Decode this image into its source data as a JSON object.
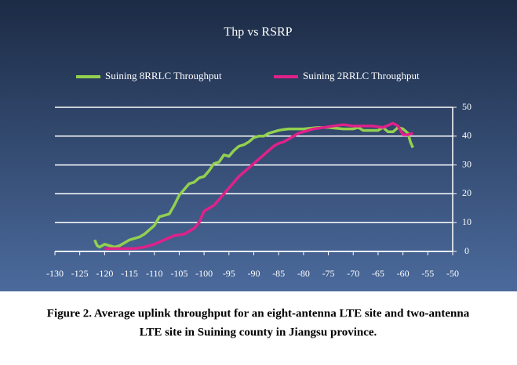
{
  "chart_data": {
    "type": "line",
    "title": "Thp vs RSRP",
    "xlim": [
      -130,
      -50
    ],
    "xticks": [
      -130,
      -125,
      -120,
      -115,
      -110,
      -105,
      -100,
      -95,
      -90,
      -85,
      -80,
      -75,
      -70,
      -65,
      -60,
      -55,
      -50
    ],
    "ylim": [
      0,
      50
    ],
    "yticks": [
      0,
      10,
      20,
      30,
      40,
      50
    ],
    "grid": true,
    "legend": "top",
    "series": [
      {
        "name": "Suining 8RRLC Throughput",
        "color": "#92d050",
        "x": [
          -122,
          -121.5,
          -121,
          -120,
          -119,
          -118,
          -117,
          -116,
          -115,
          -114,
          -113,
          -112,
          -111,
          -110,
          -109,
          -108,
          -107,
          -106,
          -105,
          -104,
          -103,
          -102,
          -101,
          -100,
          -99,
          -98,
          -97,
          -96,
          -95,
          -94,
          -93,
          -92,
          -91,
          -90,
          -89,
          -88,
          -87,
          -86,
          -85,
          -84,
          -83,
          -80,
          -77,
          -75,
          -72,
          -70,
          -69,
          -68,
          -67,
          -65,
          -64,
          -63,
          -62,
          -61,
          -60,
          -59,
          -58.5,
          -58
        ],
        "values": [
          4,
          2,
          1.5,
          2.5,
          2,
          1.5,
          2,
          3,
          4,
          4.5,
          5,
          6,
          7.5,
          9,
          12,
          12.5,
          13,
          16,
          19.5,
          21.5,
          23.5,
          24,
          25.5,
          26,
          28,
          30.5,
          31,
          33.5,
          33,
          35,
          36.5,
          37,
          38,
          39.5,
          40,
          40,
          41,
          41.5,
          42,
          42.3,
          42.5,
          42.5,
          43,
          43,
          42.5,
          42.5,
          43,
          42,
          42,
          42,
          43,
          41.5,
          41.5,
          43,
          42.5,
          41,
          38,
          36
        ]
      },
      {
        "name": "Suining 2RRLC Throughput",
        "color": "#e0218a",
        "x": [
          -120,
          -118,
          -116,
          -114,
          -112,
          -110,
          -108,
          -106,
          -104,
          -103,
          -102,
          -101,
          -100,
          -99,
          -98,
          -97,
          -96,
          -95,
          -94,
          -93,
          -92,
          -91,
          -90,
          -89,
          -88,
          -87,
          -86,
          -85,
          -84,
          -83,
          -82,
          -81,
          -80,
          -78,
          -76,
          -74,
          -72,
          -70,
          -68,
          -66,
          -64,
          -62,
          -61,
          -60,
          -59,
          -58
        ],
        "values": [
          1,
          1,
          1,
          1,
          1.5,
          2.5,
          4,
          5.5,
          6,
          7,
          8,
          10,
          14,
          15,
          16,
          18,
          20,
          22,
          24,
          26,
          27.5,
          29,
          30.5,
          32,
          33.5,
          35,
          36.5,
          37.5,
          38,
          39,
          40,
          41,
          41.5,
          42.5,
          43,
          43.5,
          44,
          43.5,
          43.5,
          43.5,
          43,
          44.5,
          43.5,
          40.5,
          40.5,
          41
        ]
      }
    ]
  },
  "caption": [
    "Figure 2. Average uplink throughput for an eight-antenna LTE site and two-antenna",
    "LTE site in Suining county in Jiangsu province."
  ]
}
